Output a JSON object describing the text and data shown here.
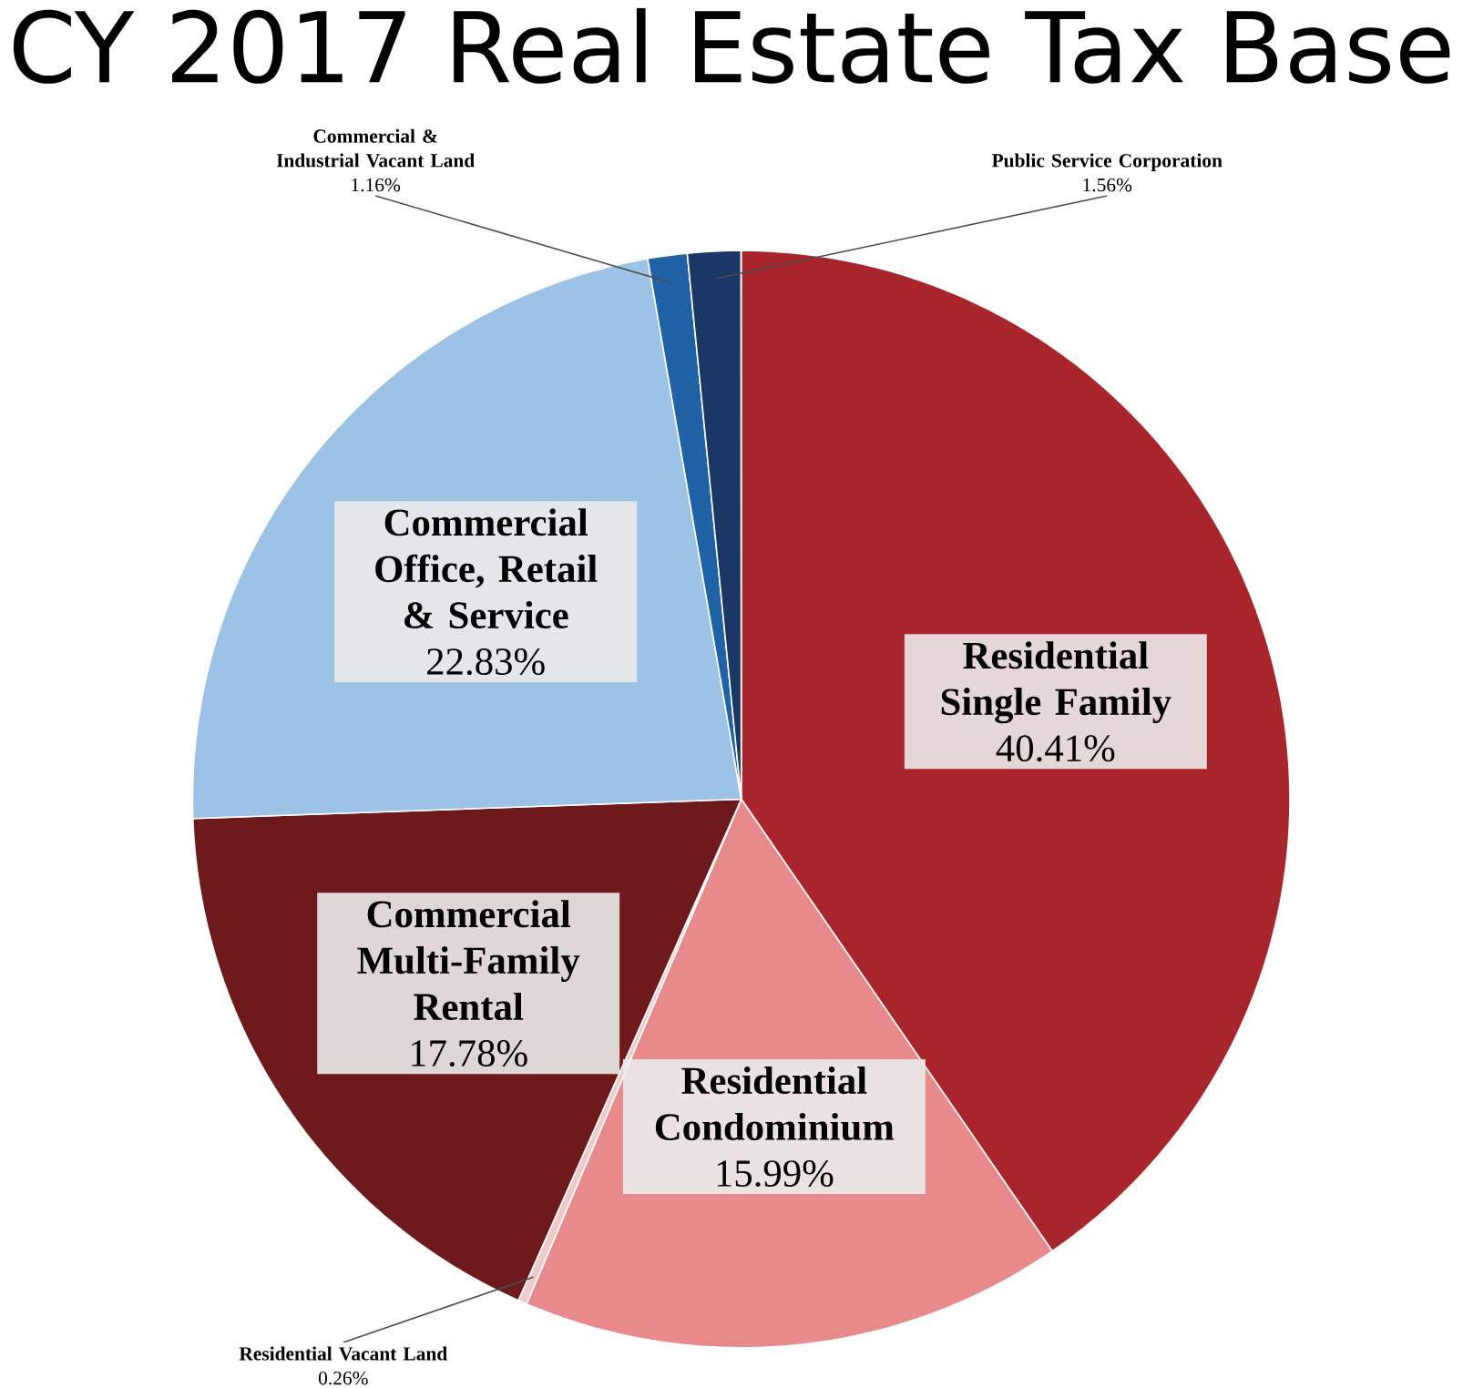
{
  "chart_data": {
    "type": "pie",
    "title": "CY 2017 Real Estate Tax Base",
    "categories": [
      "Residential Single Family",
      "Residential Condominium",
      "Residential Vacant Land",
      "Commercial Multi-Family Rental",
      "Commercial Office, Retail & Service",
      "Commercial & Industrial Vacant Land",
      "Public Service Corporation"
    ],
    "values": [
      40.41,
      15.99,
      0.26,
      17.78,
      22.83,
      1.16,
      1.56
    ],
    "value_labels": [
      "40.41%",
      "15.99%",
      "0.26%",
      "17.78%",
      "22.83%",
      "1.16%",
      "1.56%"
    ],
    "colors": [
      "#a8262b",
      "#e88a8c",
      "#f2c9c9",
      "#6e1a1c",
      "#9cc2e6",
      "#1f62a6",
      "#1b3766"
    ]
  }
}
